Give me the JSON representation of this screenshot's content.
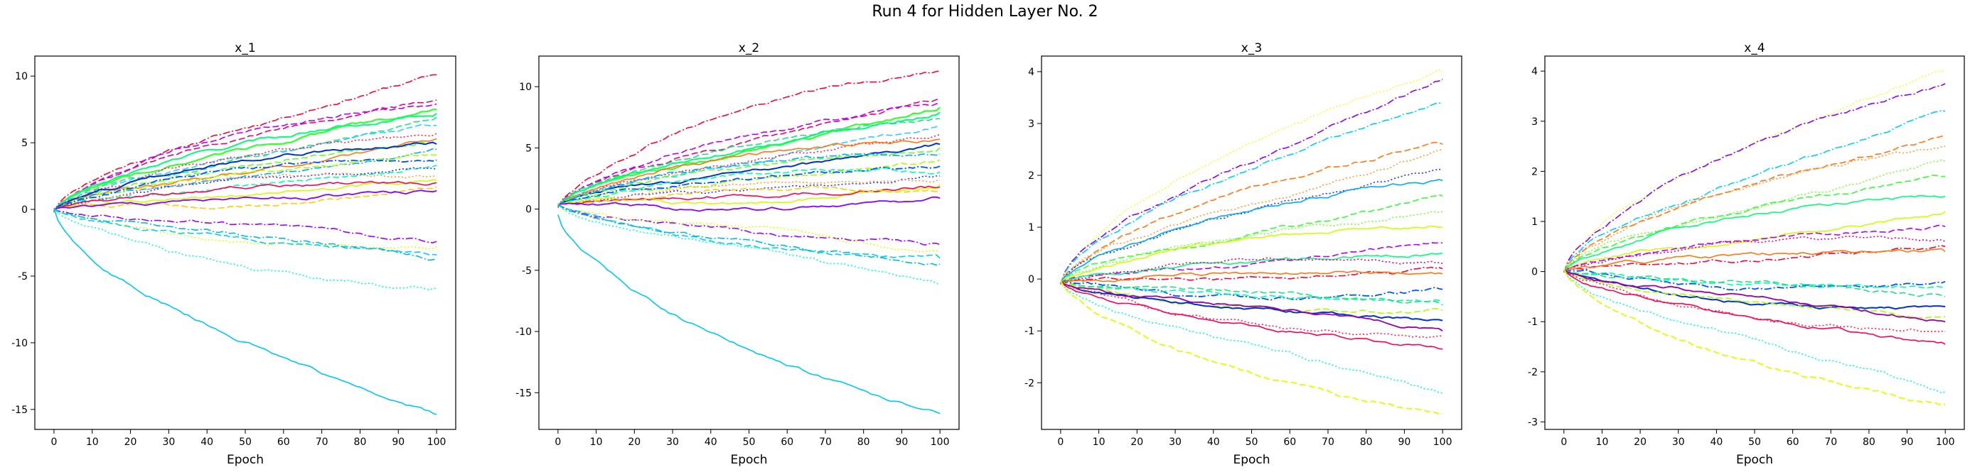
{
  "figure": {
    "title": "Run 4 for Hidden Layer No. 2"
  },
  "chart_data": [
    {
      "type": "line",
      "title": "x_1",
      "xlabel": "Epoch",
      "ylabel": "",
      "xlim": [
        -5,
        105
      ],
      "ylim": [
        -16.5,
        11.5
      ],
      "xticks": [
        0,
        10,
        20,
        30,
        40,
        50,
        60,
        70,
        80,
        90,
        100
      ],
      "yticks": [
        -15,
        -10,
        -5,
        0,
        5,
        10
      ],
      "grid": false,
      "series": [
        {
          "end": 10.1,
          "color": "#ff0033",
          "dash": "dashdot",
          "width": 1.6
        },
        {
          "end": 8.2,
          "color": "#e6007a",
          "dash": "dashed",
          "width": 1.6
        },
        {
          "end": 7.9,
          "color": "#b300ff",
          "dash": "dashed",
          "width": 1.6
        },
        {
          "end": 7.5,
          "color": "#33ff33",
          "dash": "solid",
          "width": 2.2
        },
        {
          "end": 7.2,
          "color": "#00ff77",
          "dash": "solid",
          "width": 2.0
        },
        {
          "end": 6.9,
          "color": "#19e680",
          "dash": "dashed",
          "width": 1.6
        },
        {
          "end": 6.3,
          "color": "#33ccff",
          "dash": "dashed",
          "width": 1.6
        },
        {
          "end": 5.7,
          "color": "#ff2244",
          "dash": "dotted",
          "width": 1.6
        },
        {
          "end": 5.3,
          "color": "#ff7711",
          "dash": "solid",
          "width": 1.6
        },
        {
          "end": 5.1,
          "color": "#66ff22",
          "dash": "dashed",
          "width": 1.6
        },
        {
          "end": 4.9,
          "color": "#0033cc",
          "dash": "solid",
          "width": 2.0
        },
        {
          "end": 4.5,
          "color": "#00aaff",
          "dash": "dashdot",
          "width": 1.6
        },
        {
          "end": 4.1,
          "color": "#aaff00",
          "dash": "dashed",
          "width": 1.6
        },
        {
          "end": 3.7,
          "color": "#0055ff",
          "dash": "dashdot",
          "width": 1.8
        },
        {
          "end": 3.3,
          "color": "#00ffaa",
          "dash": "dashed",
          "width": 1.6
        },
        {
          "end": 3.0,
          "color": "#2233ff",
          "dash": "dotted",
          "width": 1.6
        },
        {
          "end": 2.5,
          "color": "#ff9933",
          "dash": "dotted",
          "width": 1.6
        },
        {
          "end": 2.2,
          "color": "#ccff00",
          "dash": "solid",
          "width": 1.6
        },
        {
          "end": 2.0,
          "color": "#ff0055",
          "dash": "solid",
          "width": 1.6
        },
        {
          "end": 1.7,
          "color": "#ffcc00",
          "dash": "dashed",
          "width": 1.6
        },
        {
          "end": 1.4,
          "color": "#8800ff",
          "dash": "solid",
          "width": 1.8
        },
        {
          "end": -2.4,
          "color": "#9900ff",
          "dash": "dashdot",
          "width": 1.6
        },
        {
          "end": -2.8,
          "color": "#ddff00",
          "dash": "dotted",
          "width": 1.6
        },
        {
          "end": -3.4,
          "color": "#00ccff",
          "dash": "dashed",
          "width": 1.6
        },
        {
          "end": -3.7,
          "color": "#00bbdd",
          "dash": "dashdot",
          "width": 1.6
        },
        {
          "end": -5.9,
          "color": "#00ffcc",
          "dash": "dotted",
          "width": 1.6
        },
        {
          "end": -15.4,
          "color": "#00c8f0",
          "dash": "solid",
          "width": 1.6
        }
      ]
    },
    {
      "type": "line",
      "title": "x_2",
      "xlabel": "Epoch",
      "ylabel": "",
      "xlim": [
        -5,
        105
      ],
      "ylim": [
        -18,
        12.5
      ],
      "xticks": [
        0,
        10,
        20,
        30,
        40,
        50,
        60,
        70,
        80,
        90,
        100
      ],
      "yticks": [
        -15,
        -10,
        -5,
        0,
        5,
        10
      ],
      "grid": false,
      "series": [
        {
          "end": 11.3,
          "color": "#ff0033",
          "dash": "dashdot",
          "width": 1.6
        },
        {
          "end": 9.0,
          "color": "#e6007a",
          "dash": "dashed",
          "width": 1.6
        },
        {
          "end": 8.6,
          "color": "#b300ff",
          "dash": "dashed",
          "width": 1.6
        },
        {
          "end": 8.3,
          "color": "#33ff33",
          "dash": "solid",
          "width": 2.2
        },
        {
          "end": 7.9,
          "color": "#00ff77",
          "dash": "solid",
          "width": 2.0
        },
        {
          "end": 7.4,
          "color": "#19e680",
          "dash": "dashed",
          "width": 1.6
        },
        {
          "end": 6.8,
          "color": "#33ccff",
          "dash": "dashed",
          "width": 1.6
        },
        {
          "end": 6.1,
          "color": "#ff2244",
          "dash": "dotted",
          "width": 1.6
        },
        {
          "end": 5.7,
          "color": "#ff7711",
          "dash": "solid",
          "width": 1.6
        },
        {
          "end": 5.3,
          "color": "#0033cc",
          "dash": "solid",
          "width": 2.0
        },
        {
          "end": 5.0,
          "color": "#66ff22",
          "dash": "dashed",
          "width": 1.6
        },
        {
          "end": 4.5,
          "color": "#00aaff",
          "dash": "dashdot",
          "width": 1.6
        },
        {
          "end": 4.0,
          "color": "#aaff00",
          "dash": "dashed",
          "width": 1.6
        },
        {
          "end": 3.5,
          "color": "#0055ff",
          "dash": "dashdot",
          "width": 1.8
        },
        {
          "end": 3.0,
          "color": "#00ffaa",
          "dash": "dashed",
          "width": 1.6
        },
        {
          "end": 2.7,
          "color": "#2233ff",
          "dash": "dotted",
          "width": 1.6
        },
        {
          "end": 2.4,
          "color": "#ff9933",
          "dash": "dotted",
          "width": 1.6
        },
        {
          "end": 2.0,
          "color": "#ccff00",
          "dash": "solid",
          "width": 1.6
        },
        {
          "end": 1.8,
          "color": "#ff0055",
          "dash": "solid",
          "width": 1.6
        },
        {
          "end": 1.5,
          "color": "#ffcc00",
          "dash": "dashed",
          "width": 1.6
        },
        {
          "end": 0.9,
          "color": "#8800ff",
          "dash": "solid",
          "width": 1.8
        },
        {
          "end": -2.9,
          "color": "#9900ff",
          "dash": "dashdot",
          "width": 1.6
        },
        {
          "end": -3.5,
          "color": "#ddff00",
          "dash": "dotted",
          "width": 1.6
        },
        {
          "end": -4.0,
          "color": "#00ccff",
          "dash": "dashed",
          "width": 1.6
        },
        {
          "end": -4.5,
          "color": "#00bbdd",
          "dash": "dashdot",
          "width": 1.6
        },
        {
          "end": -6.2,
          "color": "#00ffcc",
          "dash": "dotted",
          "width": 1.6
        },
        {
          "end": -16.7,
          "color": "#00c8f0",
          "dash": "solid",
          "width": 1.6
        }
      ]
    },
    {
      "type": "line",
      "title": "x_3",
      "xlabel": "Epoch",
      "ylabel": "",
      "xlim": [
        -5,
        105
      ],
      "ylim": [
        -2.9,
        4.3
      ],
      "xticks": [
        0,
        10,
        20,
        30,
        40,
        50,
        60,
        70,
        80,
        90,
        100
      ],
      "yticks": [
        -2,
        -1,
        0,
        1,
        2,
        3,
        4
      ],
      "grid": false,
      "series": [
        {
          "end": 4.0,
          "color": "#eeff33",
          "dash": "dotted",
          "width": 1.6
        },
        {
          "end": 3.85,
          "color": "#8800ff",
          "dash": "dashdot",
          "width": 1.6
        },
        {
          "end": 3.4,
          "color": "#00ccff",
          "dash": "dashdot",
          "width": 1.6
        },
        {
          "end": 2.6,
          "color": "#ff7711",
          "dash": "dashed",
          "width": 1.6
        },
        {
          "end": 2.5,
          "color": "#ff9933",
          "dash": "dotted",
          "width": 1.6
        },
        {
          "end": 2.1,
          "color": "#2233ff",
          "dash": "dotted",
          "width": 1.6
        },
        {
          "end": 1.9,
          "color": "#00aaff",
          "dash": "solid",
          "width": 1.6
        },
        {
          "end": 1.6,
          "color": "#33ff33",
          "dash": "dashed",
          "width": 1.6
        },
        {
          "end": 1.3,
          "color": "#77ff33",
          "dash": "dotted",
          "width": 1.6
        },
        {
          "end": 1.0,
          "color": "#ccff00",
          "dash": "solid",
          "width": 1.6
        },
        {
          "end": 0.7,
          "color": "#b300ff",
          "dash": "dashed",
          "width": 1.6
        },
        {
          "end": 0.5,
          "color": "#00ff77",
          "dash": "solid",
          "width": 1.6
        },
        {
          "end": 0.3,
          "color": "#e6007a",
          "dash": "dotted",
          "width": 1.6
        },
        {
          "end": 0.2,
          "color": "#ff0033",
          "dash": "dashdot",
          "width": 1.6
        },
        {
          "end": 0.1,
          "color": "#ff7711",
          "dash": "solid",
          "width": 1.6
        },
        {
          "end": -0.2,
          "color": "#0055ff",
          "dash": "dashdot",
          "width": 1.8
        },
        {
          "end": -0.4,
          "color": "#00ffaa",
          "dash": "dashed",
          "width": 1.6
        },
        {
          "end": -0.5,
          "color": "#19e680",
          "dash": "dashed",
          "width": 1.6
        },
        {
          "end": -0.6,
          "color": "#aaff00",
          "dash": "dashed",
          "width": 1.6
        },
        {
          "end": -0.8,
          "color": "#0033cc",
          "dash": "solid",
          "width": 2.0
        },
        {
          "end": -1.0,
          "color": "#9900aa",
          "dash": "solid",
          "width": 1.8
        },
        {
          "end": -1.1,
          "color": "#ff2244",
          "dash": "dotted",
          "width": 1.6
        },
        {
          "end": -1.35,
          "color": "#ff0055",
          "dash": "solid",
          "width": 1.6
        },
        {
          "end": -2.2,
          "color": "#00ffcc",
          "dash": "dotted",
          "width": 1.6
        },
        {
          "end": -2.6,
          "color": "#ddff00",
          "dash": "dashed",
          "width": 1.8
        }
      ]
    },
    {
      "type": "line",
      "title": "x_4",
      "xlabel": "Epoch",
      "ylabel": "",
      "xlim": [
        -5,
        105
      ],
      "ylim": [
        -3.15,
        4.3
      ],
      "xticks": [
        0,
        10,
        20,
        30,
        40,
        50,
        60,
        70,
        80,
        90,
        100
      ],
      "yticks": [
        -3,
        -2,
        -1,
        0,
        1,
        2,
        3,
        4
      ],
      "grid": false,
      "series": [
        {
          "end": 4.0,
          "color": "#eeff33",
          "dash": "dotted",
          "width": 1.6
        },
        {
          "end": 3.75,
          "color": "#8800ff",
          "dash": "dashdot",
          "width": 1.6
        },
        {
          "end": 3.2,
          "color": "#00ccff",
          "dash": "dashdot",
          "width": 1.6
        },
        {
          "end": 2.7,
          "color": "#ff7711",
          "dash": "dashed",
          "width": 1.6
        },
        {
          "end": 2.5,
          "color": "#ff9933",
          "dash": "dotted",
          "width": 1.6
        },
        {
          "end": 2.2,
          "color": "#77ff33",
          "dash": "dotted",
          "width": 1.6
        },
        {
          "end": 1.9,
          "color": "#33ff33",
          "dash": "dashed",
          "width": 1.6
        },
        {
          "end": 1.5,
          "color": "#00ff77",
          "dash": "solid",
          "width": 1.6
        },
        {
          "end": 1.2,
          "color": "#ccff00",
          "dash": "solid",
          "width": 1.6
        },
        {
          "end": 0.9,
          "color": "#b300ff",
          "dash": "dashed",
          "width": 1.6
        },
        {
          "end": 0.6,
          "color": "#e6007a",
          "dash": "dotted",
          "width": 1.6
        },
        {
          "end": 0.5,
          "color": "#ff0033",
          "dash": "dashdot",
          "width": 1.6
        },
        {
          "end": 0.4,
          "color": "#ff7711",
          "dash": "solid",
          "width": 1.6
        },
        {
          "end": -0.2,
          "color": "#0055ff",
          "dash": "dashdot",
          "width": 1.8
        },
        {
          "end": -0.3,
          "color": "#00ffaa",
          "dash": "dashed",
          "width": 1.6
        },
        {
          "end": -0.5,
          "color": "#19e680",
          "dash": "dashed",
          "width": 1.6
        },
        {
          "end": -0.7,
          "color": "#0033cc",
          "dash": "solid",
          "width": 2.0
        },
        {
          "end": -0.9,
          "color": "#aaff00",
          "dash": "dashed",
          "width": 1.6
        },
        {
          "end": -1.0,
          "color": "#9900aa",
          "dash": "solid",
          "width": 1.8
        },
        {
          "end": -1.2,
          "color": "#ff2244",
          "dash": "dotted",
          "width": 1.6
        },
        {
          "end": -1.45,
          "color": "#ff0055",
          "dash": "solid",
          "width": 1.6
        },
        {
          "end": -2.4,
          "color": "#00ffcc",
          "dash": "dotted",
          "width": 1.6
        },
        {
          "end": -2.65,
          "color": "#ddff00",
          "dash": "dashed",
          "width": 1.8
        }
      ]
    }
  ]
}
